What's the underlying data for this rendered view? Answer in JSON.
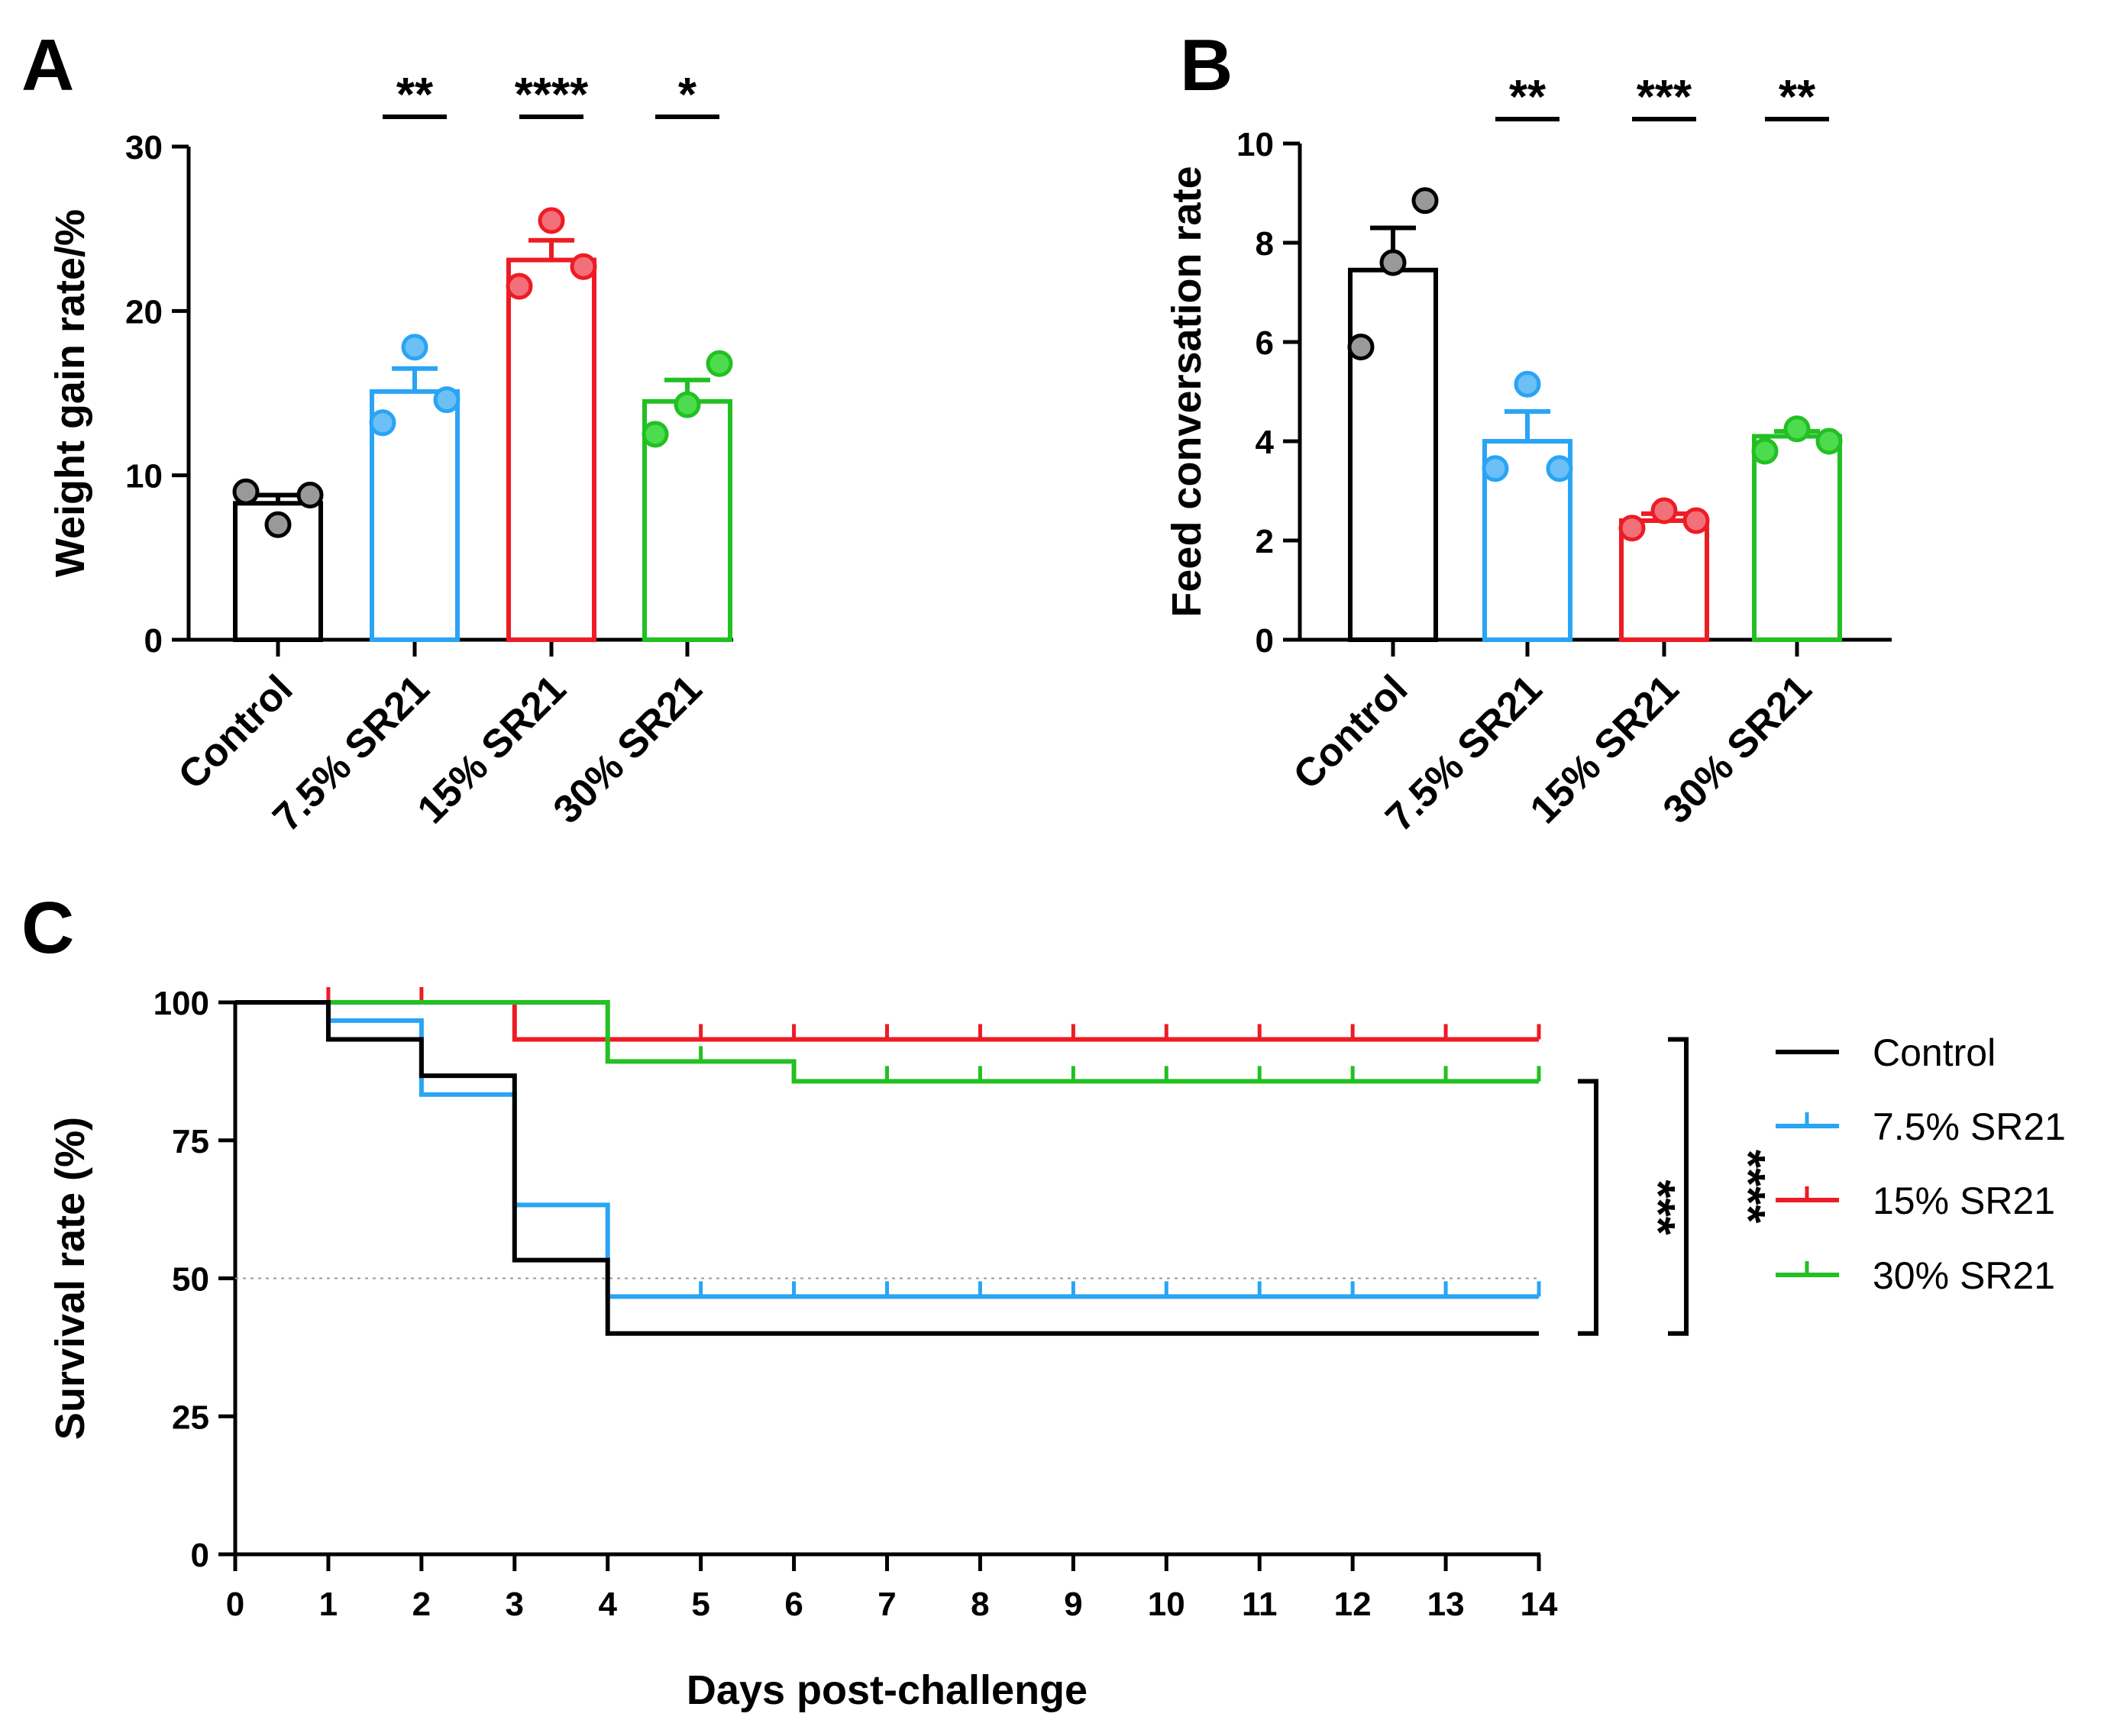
{
  "panels": {
    "A": {
      "letter": "A"
    },
    "B": {
      "letter": "B"
    },
    "C": {
      "letter": "C"
    }
  },
  "colors": {
    "control": "#000000",
    "sr21_7_5": "#2aa4f4",
    "sr21_15": "#ed1c24",
    "sr21_30": "#22c022",
    "control_points": "#999999",
    "sr21_7_5_points": "#6cc0f5",
    "sr21_15_points": "#f2707a",
    "sr21_30_points": "#4ddc4d"
  },
  "chart_data": [
    {
      "id": "A",
      "type": "bar",
      "title": "",
      "ylabel": "Weight gain rate/%",
      "xlabel": "",
      "ylim": [
        0,
        30
      ],
      "yticks": [
        0,
        10,
        20,
        30
      ],
      "categories": [
        "Control",
        "7.5% SR21",
        "15% SR21",
        "30% SR21"
      ],
      "values": [
        8.3,
        15.1,
        23.1,
        14.5
      ],
      "sem": [
        0.5,
        1.4,
        1.2,
        1.3
      ],
      "points": [
        [
          9.0,
          7.0,
          8.8
        ],
        [
          13.2,
          17.8,
          14.6
        ],
        [
          21.5,
          25.5,
          22.7
        ],
        [
          12.5,
          14.3,
          16.8
        ]
      ],
      "significance": [
        "",
        "**",
        "****",
        "*"
      ]
    },
    {
      "id": "B",
      "type": "bar",
      "title": "",
      "ylabel": "Feed conversation rate",
      "xlabel": "",
      "ylim": [
        0,
        10
      ],
      "yticks": [
        0,
        2,
        4,
        6,
        8,
        10
      ],
      "categories": [
        "Control",
        "7.5% SR21",
        "15% SR21",
        "30% SR21"
      ],
      "values": [
        7.45,
        4.0,
        2.4,
        4.1
      ],
      "sem": [
        0.85,
        0.6,
        0.14,
        0.1
      ],
      "points": [
        [
          5.9,
          7.6,
          8.85
        ],
        [
          3.45,
          5.15,
          3.45
        ],
        [
          2.25,
          2.6,
          2.4
        ],
        [
          3.8,
          4.25,
          4.0
        ]
      ],
      "significance": [
        "",
        "**",
        "***",
        "**"
      ]
    },
    {
      "id": "C",
      "type": "line",
      "title": "",
      "xlabel": "Days post-challenge",
      "ylabel": "Survival rate (%)",
      "xlim": [
        0,
        14
      ],
      "ylim": [
        0,
        100
      ],
      "xticks": [
        0,
        1,
        2,
        3,
        4,
        5,
        6,
        7,
        8,
        9,
        10,
        11,
        12,
        13,
        14
      ],
      "yticks": [
        0,
        25,
        50,
        75,
        100
      ],
      "median_line": 50,
      "legend_position": "right",
      "series": [
        {
          "name": "Control",
          "color_key": "control",
          "steps": [
            [
              0,
              100
            ],
            [
              1,
              93.3
            ],
            [
              2,
              86.7
            ],
            [
              3,
              53.3
            ],
            [
              4,
              40
            ],
            [
              14,
              40
            ]
          ],
          "censor": []
        },
        {
          "name": "7.5% SR21",
          "color_key": "sr21_7_5",
          "steps": [
            [
              0,
              100
            ],
            [
              1,
              96.7
            ],
            [
              2,
              83.3
            ],
            [
              3,
              63.3
            ],
            [
              4,
              46.7
            ],
            [
              14,
              46.7
            ]
          ],
          "censor": [
            5,
            6,
            7,
            8,
            9,
            10,
            11,
            12,
            13,
            14
          ]
        },
        {
          "name": "15% SR21",
          "color_key": "sr21_15",
          "steps": [
            [
              0,
              100
            ],
            [
              3,
              93.3
            ],
            [
              14,
              93.3
            ]
          ],
          "censor": [
            1,
            2,
            4,
            5,
            6,
            7,
            8,
            9,
            10,
            11,
            12,
            13,
            14
          ]
        },
        {
          "name": "30% SR21",
          "color_key": "sr21_30",
          "steps": [
            [
              0,
              100
            ],
            [
              4,
              89.3
            ],
            [
              6,
              85.7
            ],
            [
              14,
              85.7
            ]
          ],
          "censor": [
            5,
            7,
            8,
            9,
            10,
            11,
            12,
            13,
            14
          ]
        }
      ],
      "comparisons": [
        {
          "label": "***",
          "from_series": "30% SR21",
          "to_series": "Control"
        },
        {
          "label": "****",
          "from_series": "15% SR21",
          "to_series": "Control"
        }
      ]
    }
  ]
}
